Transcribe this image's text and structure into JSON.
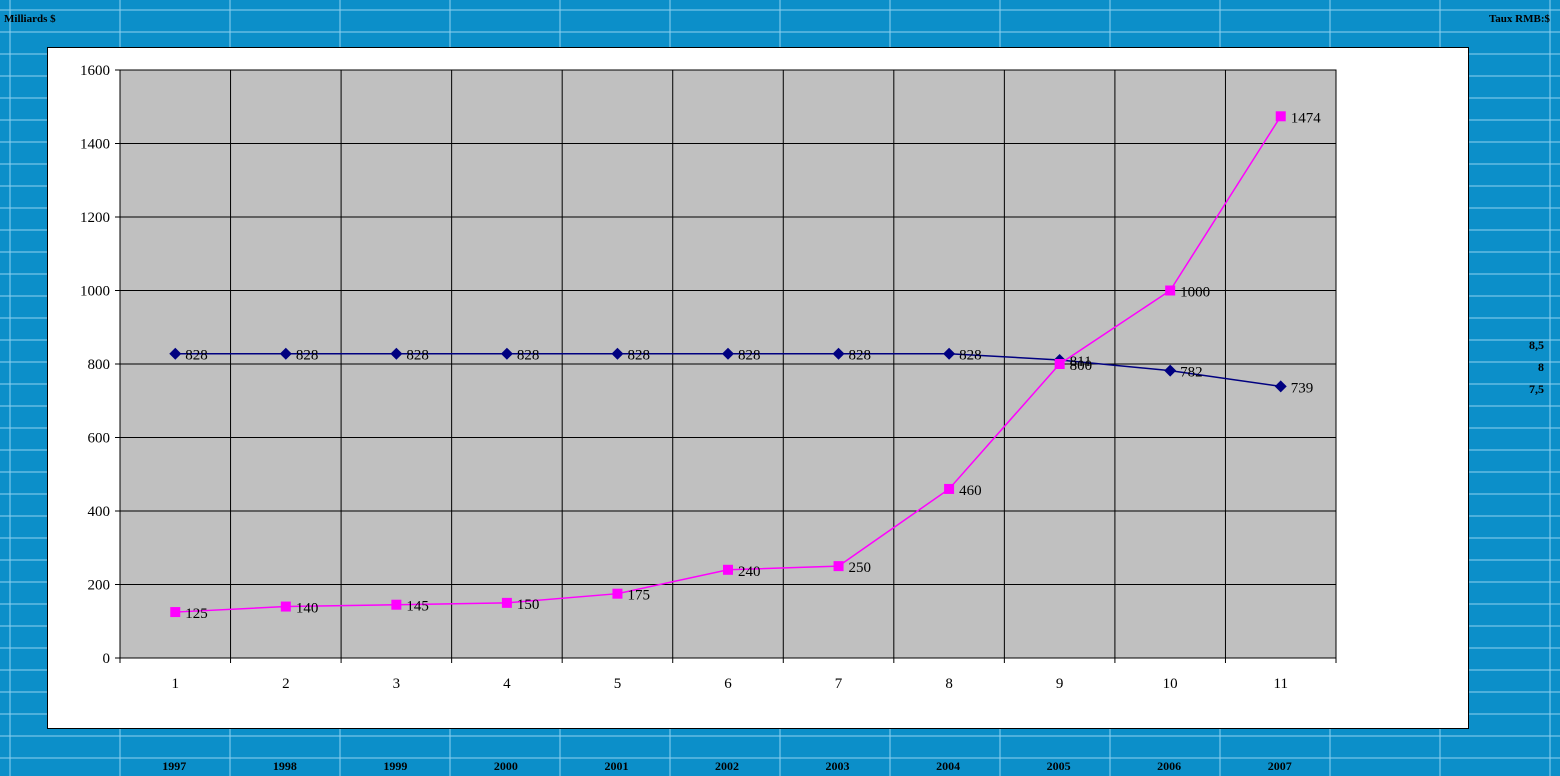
{
  "left_label": "Milliards $",
  "right_label": "Taux RMB:$",
  "right_axis_ticks": [
    "8,5",
    "8",
    "7,5"
  ],
  "colors": {
    "background": "#0c8fc9",
    "plot_area": "#c0c0c0",
    "series_rate": "#000080",
    "series_reserves": "#ff00ff"
  },
  "chart_data": {
    "type": "line",
    "title": "",
    "xlabel": "",
    "ylabel": "",
    "x": [
      "1",
      "2",
      "3",
      "4",
      "5",
      "6",
      "7",
      "8",
      "9",
      "10",
      "11"
    ],
    "ylim": [
      0,
      1600
    ],
    "y_ticks": [
      0,
      200,
      400,
      600,
      800,
      1000,
      1200,
      1400,
      1600
    ],
    "grid": true,
    "years": [
      "1997",
      "1998",
      "1999",
      "2000",
      "2001",
      "2002",
      "2003",
      "2004",
      "2005",
      "2006",
      "2007"
    ],
    "series": [
      {
        "marker": "diamond",
        "color": "#000080",
        "values": [
          828,
          828,
          828,
          828,
          828,
          828,
          828,
          828,
          811,
          782,
          739
        ]
      },
      {
        "marker": "square",
        "color": "#ff00ff",
        "values": [
          125,
          140,
          145,
          150,
          175,
          240,
          250,
          460,
          800,
          1000,
          1474
        ]
      }
    ]
  }
}
